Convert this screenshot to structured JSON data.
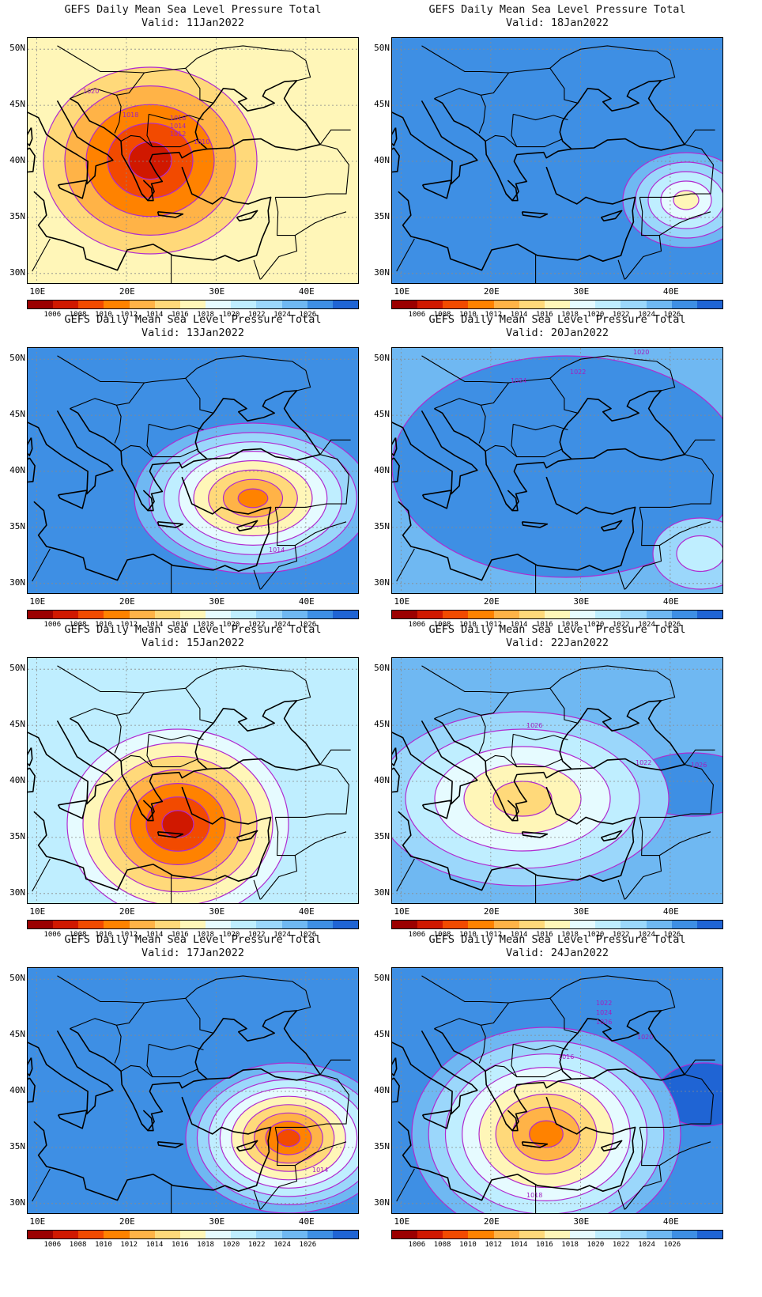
{
  "map_title": "GEFS Daily Mean Sea Level Pressure Total",
  "lat_labels": [
    "50N",
    "45N",
    "40N",
    "35N",
    "30N"
  ],
  "lon_labels": [
    "10E",
    "20E",
    "30E",
    "40E"
  ],
  "colorbar": {
    "colors": [
      "#9b0000",
      "#d01800",
      "#f24a00",
      "#ff8200",
      "#ffb347",
      "#ffd97a",
      "#fff6b8",
      "#e6fbff",
      "#bfeeff",
      "#9bd7fb",
      "#6fb8f2",
      "#3e8fe4",
      "#1f64d4"
    ],
    "labels": [
      "1006",
      "1008",
      "1010",
      "1012",
      "1014",
      "1016",
      "1018",
      "1020",
      "1022",
      "1024",
      "1026"
    ]
  },
  "panels": [
    {
      "valid": "Valid: 11Jan2022",
      "center_value": 1006,
      "bg_value": 1016,
      "system": "low",
      "contour_labels": [
        "1020",
        "1018",
        "1016",
        "1014",
        "1012",
        "1010"
      ]
    },
    {
      "valid": "Valid: 18Jan2022",
      "center_value": 1018,
      "bg_value": 1027,
      "system": "weak-low",
      "contour_labels": []
    },
    {
      "valid": "Valid: 13Jan2022",
      "center_value": 1010,
      "bg_value": 1026,
      "system": "low",
      "contour_labels": [
        "1014"
      ]
    },
    {
      "valid": "Valid: 20Jan2022",
      "center_value": 1020,
      "bg_value": 1024,
      "system": "broad-high",
      "contour_labels": [
        "1020",
        "1022",
        "1024"
      ]
    },
    {
      "valid": "Valid: 15Jan2022",
      "center_value": 1006,
      "bg_value": 1020,
      "system": "low",
      "contour_labels": []
    },
    {
      "valid": "Valid: 22Jan2022",
      "center_value": 1014,
      "bg_value": 1024,
      "system": "low",
      "contour_labels": [
        "1026",
        "1022",
        "1026"
      ]
    },
    {
      "valid": "Valid: 17Jan2022",
      "center_value": 1010,
      "bg_value": 1027,
      "system": "low",
      "contour_labels": [
        "1014",
        "1012"
      ]
    },
    {
      "valid": "Valid: 24Jan2022",
      "center_value": 1010,
      "bg_value": 1026,
      "system": "low",
      "contour_labels": [
        "1022",
        "1024",
        "1026",
        "1020",
        "1016",
        "1018"
      ]
    }
  ]
}
